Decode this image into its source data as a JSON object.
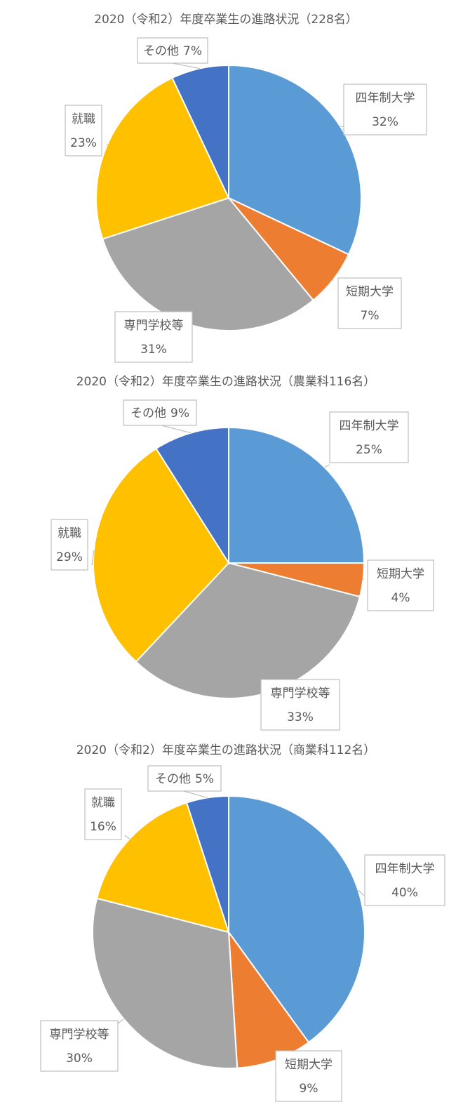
{
  "chart_data": [
    {
      "type": "pie",
      "title": "2020（令和2）年度卒業生の進路状況（228名）",
      "slices": [
        {
          "name": "四年制大学",
          "value": 32,
          "label": "32%",
          "color": "#5b9bd5"
        },
        {
          "name": "短期大学",
          "value": 7,
          "label": "7%",
          "color": "#ed7d31"
        },
        {
          "name": "専門学校等",
          "value": 31,
          "label": "31%",
          "color": "#a5a5a5"
        },
        {
          "name": "就職",
          "value": 23,
          "label": "23%",
          "color": "#ffc000"
        },
        {
          "name": "その他",
          "value": 7,
          "label": "7%",
          "color": "#4472c4"
        }
      ]
    },
    {
      "type": "pie",
      "title": "2020（令和2）年度卒業生の進路状況（農業科116名）",
      "slices": [
        {
          "name": "四年制大学",
          "value": 25,
          "label": "25%",
          "color": "#5b9bd5"
        },
        {
          "name": "短期大学",
          "value": 4,
          "label": "4%",
          "color": "#ed7d31"
        },
        {
          "name": "専門学校等",
          "value": 33,
          "label": "33%",
          "color": "#a5a5a5"
        },
        {
          "name": "就職",
          "value": 29,
          "label": "29%",
          "color": "#ffc000"
        },
        {
          "name": "その他",
          "value": 9,
          "label": "9%",
          "color": "#4472c4"
        }
      ]
    },
    {
      "type": "pie",
      "title": "2020（令和2）年度卒業生の進路状況（商業科112名）",
      "slices": [
        {
          "name": "四年制大学",
          "value": 40,
          "label": "40%",
          "color": "#5b9bd5"
        },
        {
          "name": "短期大学",
          "value": 9,
          "label": "9%",
          "color": "#ed7d31"
        },
        {
          "name": "専門学校等",
          "value": 30,
          "label": "30%",
          "color": "#a5a5a5"
        },
        {
          "name": "就職",
          "value": 16,
          "label": "16%",
          "color": "#ffc000"
        },
        {
          "name": "その他",
          "value": 5,
          "label": "5%",
          "color": "#4472c4"
        }
      ]
    }
  ]
}
